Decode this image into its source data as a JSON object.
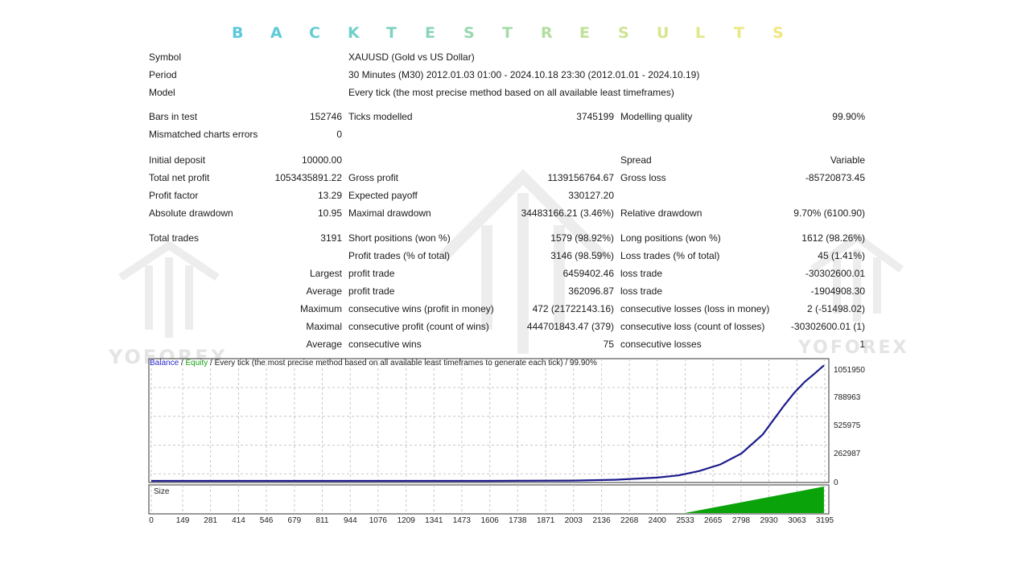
{
  "title": {
    "letters": [
      "B",
      "A",
      "C",
      "K",
      "T",
      "E",
      "S",
      "T",
      "R",
      "E",
      "S",
      "U",
      "L",
      "T",
      "S"
    ],
    "colors": [
      "#5bc8dc",
      "#5fcad7",
      "#67ccd0",
      "#72cfc8",
      "#7ed2c0",
      "#8bd5b8",
      "#98d8b0",
      "#a5daa8",
      "#b3dda0",
      "#c0e098",
      "#cde391",
      "#d9e58a",
      "#e3e784",
      "#ebe87f",
      "#f0e87b"
    ]
  },
  "watermark": {
    "brand": "YOFOREX"
  },
  "info": [
    {
      "label": "Symbol",
      "value": "XAUUSD (Gold vs US Dollar)"
    },
    {
      "label": "Period",
      "value": "30 Minutes (M30) 2012.01.03 01:00 - 2024.10.18 23:30 (2012.01.01 - 2024.10.19)"
    },
    {
      "label": "Model",
      "value": "Every tick (the most precise method based on all available least timeframes)"
    }
  ],
  "bars": {
    "bars_in_test_label": "Bars in test",
    "bars_in_test": "152746",
    "ticks_label": "Ticks modelled",
    "ticks": "3745199",
    "quality_label": "Modelling quality",
    "quality": "99.90%",
    "mismatched_label": "Mismatched charts errors",
    "mismatched": "0"
  },
  "money": {
    "initial_deposit_label": "Initial deposit",
    "initial_deposit": "10000.00",
    "spread_label": "Spread",
    "spread": "Variable",
    "net_profit_label": "Total net profit",
    "net_profit": "1053435891.22",
    "gross_profit_label": "Gross profit",
    "gross_profit": "1139156764.67",
    "gross_loss_label": "Gross loss",
    "gross_loss": "-85720873.45",
    "profit_factor_label": "Profit factor",
    "profit_factor": "13.29",
    "expected_payoff_label": "Expected payoff",
    "expected_payoff": "330127.20",
    "abs_dd_label": "Absolute drawdown",
    "abs_dd": "10.95",
    "max_dd_label": "Maximal drawdown",
    "max_dd": "34483166.21 (3.46%)",
    "rel_dd_label": "Relative drawdown",
    "rel_dd": "9.70% (6100.90)"
  },
  "trades": {
    "total_label": "Total trades",
    "total": "3191",
    "short_label": "Short positions (won %)",
    "short": "1579 (98.92%)",
    "long_label": "Long positions (won %)",
    "long": "1612 (98.26%)",
    "profit_trades_label": "Profit trades (% of total)",
    "profit_trades": "3146 (98.59%)",
    "loss_trades_label": "Loss trades (% of total)",
    "loss_trades": "45 (1.41%)",
    "largest_label": "Largest",
    "largest_profit_label": "profit trade",
    "largest_profit": "6459402.46",
    "largest_loss_label": "loss trade",
    "largest_loss": "-30302600.01",
    "average_label": "Average",
    "average_profit_label": "profit trade",
    "average_profit": "362096.87",
    "average_loss_label": "loss trade",
    "average_loss": "-1904908.30",
    "maximum_label": "Maximum",
    "max_cons_wins_label": "consecutive wins (profit in money)",
    "max_cons_wins": "472 (21722143.16)",
    "max_cons_losses_label": "consecutive losses (loss in money)",
    "max_cons_losses": "2 (-51498.02)",
    "maximal_label": "Maximal",
    "maximal_cons_profit_label": "consecutive profit (count of wins)",
    "maximal_cons_profit": "444701843.47 (379)",
    "maximal_cons_loss_label": "consecutive loss (count of losses)",
    "maximal_cons_loss": "-30302600.01 (1)",
    "avg2_label": "Average",
    "avg_cons_wins_label": "consecutive wins",
    "avg_cons_wins": "75",
    "avg_cons_losses_label": "consecutive losses",
    "avg_cons_losses": "1"
  },
  "chart": {
    "legend_balance": "Balance",
    "legend_sep1": " / ",
    "legend_equity": "Equity",
    "legend_rest": " / Every tick (the most precise method based on all available least timeframes to generate each tick) / 99.90%",
    "size_label": "Size"
  },
  "chart_data": {
    "type": "line",
    "series": [
      {
        "name": "Balance",
        "color": "#1c1c8c"
      }
    ],
    "y_tick_labels": [
      "1051950",
      "788963",
      "525975",
      "262987",
      "0"
    ],
    "x_tick_labels": [
      "0",
      "149",
      "281",
      "414",
      "546",
      "679",
      "811",
      "944",
      "1076",
      "1209",
      "1341",
      "1473",
      "1606",
      "1738",
      "1871",
      "2003",
      "2136",
      "2268",
      "2400",
      "2533",
      "2665",
      "2798",
      "2930",
      "3063",
      "3195"
    ],
    "x": [
      0,
      400,
      800,
      1200,
      1600,
      2000,
      2200,
      2400,
      2500,
      2600,
      2700,
      2800,
      2900,
      2950,
      3000,
      3050,
      3100,
      3150,
      3191
    ],
    "balance": [
      0,
      0,
      0,
      0,
      0,
      300000,
      1000000,
      3000000,
      5000000,
      9000000,
      15000000,
      25000000,
      42000000,
      55000000,
      68000000,
      80000000,
      90000000,
      98000000,
      105000000
    ],
    "ylim": [
      0,
      105195000
    ],
    "size_series_start": 2530,
    "size_color": "#0aa30a",
    "grid": true
  }
}
